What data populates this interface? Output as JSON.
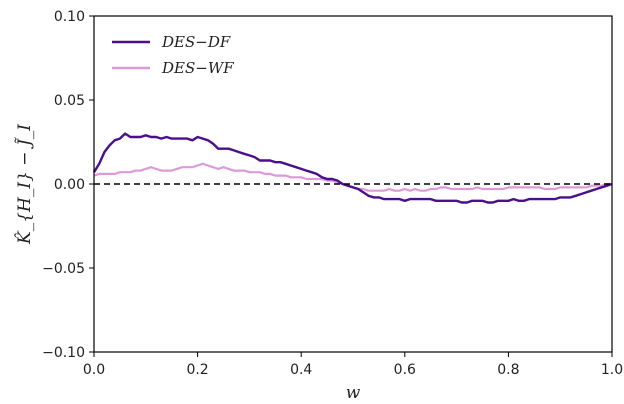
{
  "chart_data": {
    "type": "line",
    "xlabel": "w",
    "ylabel": "K̂_{H_I} − J̃_I",
    "xlim": [
      0.0,
      1.0
    ],
    "ylim": [
      -0.1,
      0.1
    ],
    "xticks": [
      "0.0",
      "0.2",
      "0.4",
      "0.6",
      "0.8",
      "1.0"
    ],
    "yticks": [
      "−0.10",
      "−0.05",
      "0.00",
      "0.05",
      "0.10"
    ],
    "reference_line": {
      "y": 0.0,
      "style": "dashed",
      "color": "#000000"
    },
    "legend_placement": "top-left",
    "grid": false,
    "series": [
      {
        "name": "DES−DF",
        "color": "#4b0f8c",
        "x": [
          0.0,
          0.01,
          0.02,
          0.03,
          0.04,
          0.05,
          0.06,
          0.07,
          0.08,
          0.09,
          0.1,
          0.11,
          0.12,
          0.13,
          0.14,
          0.15,
          0.16,
          0.17,
          0.18,
          0.19,
          0.2,
          0.21,
          0.22,
          0.23,
          0.24,
          0.25,
          0.26,
          0.27,
          0.28,
          0.29,
          0.3,
          0.31,
          0.32,
          0.33,
          0.34,
          0.35,
          0.36,
          0.37,
          0.38,
          0.39,
          0.4,
          0.41,
          0.42,
          0.43,
          0.44,
          0.45,
          0.46,
          0.47,
          0.48,
          0.49,
          0.5,
          0.51,
          0.52,
          0.53,
          0.54,
          0.55,
          0.56,
          0.57,
          0.58,
          0.59,
          0.6,
          0.61,
          0.62,
          0.63,
          0.64,
          0.65,
          0.66,
          0.67,
          0.68,
          0.69,
          0.7,
          0.71,
          0.72,
          0.73,
          0.74,
          0.75,
          0.76,
          0.77,
          0.78,
          0.79,
          0.8,
          0.81,
          0.82,
          0.83,
          0.84,
          0.85,
          0.86,
          0.87,
          0.88,
          0.89,
          0.9,
          0.91,
          0.92,
          0.93,
          0.94,
          0.95,
          0.96,
          0.97,
          0.98,
          0.99,
          1.0
        ],
        "y": [
          0.007,
          0.012,
          0.019,
          0.023,
          0.026,
          0.027,
          0.03,
          0.028,
          0.028,
          0.028,
          0.029,
          0.028,
          0.028,
          0.027,
          0.028,
          0.027,
          0.027,
          0.027,
          0.027,
          0.026,
          0.028,
          0.027,
          0.026,
          0.024,
          0.021,
          0.021,
          0.021,
          0.02,
          0.019,
          0.018,
          0.017,
          0.016,
          0.014,
          0.014,
          0.014,
          0.013,
          0.013,
          0.012,
          0.011,
          0.01,
          0.009,
          0.008,
          0.007,
          0.006,
          0.004,
          0.003,
          0.003,
          0.002,
          0.0,
          -0.001,
          -0.002,
          -0.003,
          -0.005,
          -0.007,
          -0.008,
          -0.008,
          -0.009,
          -0.009,
          -0.009,
          -0.009,
          -0.01,
          -0.009,
          -0.009,
          -0.009,
          -0.009,
          -0.009,
          -0.01,
          -0.01,
          -0.01,
          -0.01,
          -0.01,
          -0.011,
          -0.011,
          -0.01,
          -0.01,
          -0.01,
          -0.011,
          -0.011,
          -0.01,
          -0.01,
          -0.01,
          -0.009,
          -0.01,
          -0.01,
          -0.009,
          -0.009,
          -0.009,
          -0.009,
          -0.009,
          -0.009,
          -0.008,
          -0.008,
          -0.008,
          -0.007,
          -0.006,
          -0.005,
          -0.004,
          -0.003,
          -0.002,
          -0.001,
          0.0
        ]
      },
      {
        "name": "DES−WF",
        "color": "#dc9ad9",
        "x": [
          0.0,
          0.01,
          0.02,
          0.03,
          0.04,
          0.05,
          0.06,
          0.07,
          0.08,
          0.09,
          0.1,
          0.11,
          0.12,
          0.13,
          0.14,
          0.15,
          0.16,
          0.17,
          0.18,
          0.19,
          0.2,
          0.21,
          0.22,
          0.23,
          0.24,
          0.25,
          0.26,
          0.27,
          0.28,
          0.29,
          0.3,
          0.31,
          0.32,
          0.33,
          0.34,
          0.35,
          0.36,
          0.37,
          0.38,
          0.39,
          0.4,
          0.41,
          0.42,
          0.43,
          0.44,
          0.45,
          0.46,
          0.47,
          0.48,
          0.49,
          0.5,
          0.51,
          0.52,
          0.53,
          0.54,
          0.55,
          0.56,
          0.57,
          0.58,
          0.59,
          0.6,
          0.61,
          0.62,
          0.63,
          0.64,
          0.65,
          0.66,
          0.67,
          0.68,
          0.69,
          0.7,
          0.71,
          0.72,
          0.73,
          0.74,
          0.75,
          0.76,
          0.77,
          0.78,
          0.79,
          0.8,
          0.81,
          0.82,
          0.83,
          0.84,
          0.85,
          0.86,
          0.87,
          0.88,
          0.89,
          0.9,
          0.91,
          0.92,
          0.93,
          0.94,
          0.95,
          0.96,
          0.97,
          0.98,
          0.99,
          1.0
        ],
        "y": [
          0.005,
          0.006,
          0.006,
          0.006,
          0.006,
          0.007,
          0.007,
          0.007,
          0.008,
          0.008,
          0.009,
          0.01,
          0.009,
          0.008,
          0.008,
          0.008,
          0.009,
          0.01,
          0.01,
          0.01,
          0.011,
          0.012,
          0.011,
          0.01,
          0.009,
          0.01,
          0.009,
          0.008,
          0.008,
          0.008,
          0.007,
          0.007,
          0.007,
          0.006,
          0.006,
          0.005,
          0.005,
          0.005,
          0.004,
          0.004,
          0.004,
          0.003,
          0.003,
          0.003,
          0.003,
          0.002,
          0.002,
          0.001,
          0.0,
          -0.001,
          -0.002,
          -0.003,
          -0.003,
          -0.004,
          -0.004,
          -0.004,
          -0.004,
          -0.003,
          -0.004,
          -0.004,
          -0.003,
          -0.004,
          -0.003,
          -0.004,
          -0.004,
          -0.003,
          -0.003,
          -0.002,
          -0.002,
          -0.003,
          -0.003,
          -0.003,
          -0.003,
          -0.003,
          -0.002,
          -0.003,
          -0.003,
          -0.003,
          -0.003,
          -0.003,
          -0.002,
          -0.002,
          -0.002,
          -0.002,
          -0.002,
          -0.002,
          -0.002,
          -0.003,
          -0.003,
          -0.003,
          -0.002,
          -0.002,
          -0.002,
          -0.002,
          -0.002,
          -0.002,
          -0.001,
          -0.001,
          -0.001,
          0.0,
          0.0
        ]
      }
    ]
  }
}
